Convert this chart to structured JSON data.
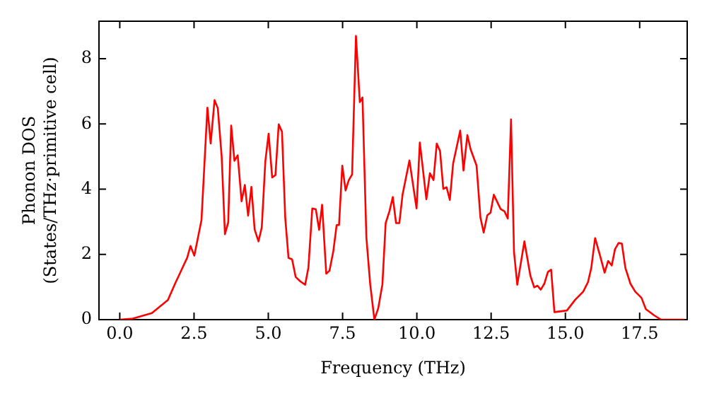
{
  "chart_data": {
    "type": "line",
    "xlabel": "Frequency (THz)",
    "ylabel": "Phonon DOS\n(States/THz·primitive cell)",
    "xlim": [
      -0.7,
      19.1
    ],
    "ylim": [
      0,
      9.15
    ],
    "xticks": [
      {
        "value": 0,
        "label": "0.0"
      },
      {
        "value": 2.5,
        "label": "2.5"
      },
      {
        "value": 5,
        "label": "5.0"
      },
      {
        "value": 7.5,
        "label": "7.5"
      },
      {
        "value": 10,
        "label": "10.0"
      },
      {
        "value": 12.5,
        "label": "12.5"
      },
      {
        "value": 15,
        "label": "15.0"
      },
      {
        "value": 17.5,
        "label": "17.5"
      }
    ],
    "yticks": [
      0,
      2,
      4,
      6,
      8
    ],
    "grid": false,
    "legend": false,
    "marker": "none",
    "line_style": "solid",
    "series": [
      {
        "color": "#ff0000",
        "x": [
          0,
          0.44,
          1.08,
          1.62,
          1.86,
          2.27,
          2.38,
          2.51,
          2.75,
          2.95,
          3.06,
          3.19,
          3.3,
          3.43,
          3.54,
          3.65,
          3.75,
          3.86,
          3.97,
          4.1,
          4.21,
          4.32,
          4.43,
          4.54,
          4.67,
          4.78,
          4.9,
          5.01,
          5.13,
          5.24,
          5.35,
          5.46,
          5.57,
          5.68,
          5.8,
          5.92,
          6.08,
          6.24,
          6.35,
          6.48,
          6.6,
          6.71,
          6.81,
          6.95,
          7.06,
          7.19,
          7.3,
          7.38,
          7.49,
          7.6,
          7.71,
          7.82,
          7.95,
          8.08,
          8.17,
          8.3,
          8.43,
          8.57,
          8.7,
          8.84,
          8.95,
          9.08,
          9.19,
          9.3,
          9.41,
          9.52,
          9.75,
          9.99,
          10.1,
          10.21,
          10.32,
          10.44,
          10.56,
          10.67,
          10.78,
          10.89,
          11,
          11.11,
          11.22,
          11.46,
          11.57,
          11.7,
          11.81,
          12.01,
          12.14,
          12.25,
          12.37,
          12.48,
          12.59,
          12.82,
          12.95,
          13.06,
          13.17,
          13.27,
          13.38,
          13.62,
          13.82,
          13.95,
          14.06,
          14.17,
          14.29,
          14.41,
          14.52,
          14.63,
          15.05,
          15.33,
          15.6,
          15.76,
          15.87,
          16,
          16.16,
          16.32,
          16.44,
          16.56,
          16.67,
          16.79,
          16.9,
          17.02,
          17.19,
          17.35,
          17.56,
          17.71,
          17.99,
          18.22,
          19
        ],
        "values": [
          0,
          0.03,
          0.2,
          0.6,
          1.1,
          1.9,
          2.26,
          1.96,
          3.05,
          6.5,
          5.4,
          6.73,
          6.48,
          5,
          2.62,
          2.98,
          5.95,
          4.87,
          5.04,
          3.63,
          4.13,
          3.19,
          4.07,
          2.76,
          2.4,
          2.83,
          4.86,
          5.7,
          4.36,
          4.43,
          5.99,
          5.76,
          3.12,
          1.89,
          1.85,
          1.31,
          1.17,
          1.07,
          1.6,
          3.41,
          3.38,
          2.75,
          3.52,
          1.41,
          1.5,
          2.11,
          2.9,
          2.9,
          4.72,
          3.96,
          4.28,
          4.45,
          8.7,
          6.67,
          6.81,
          2.53,
          1.08,
          0,
          0.35,
          1.08,
          2.96,
          3.33,
          3.76,
          2.96,
          2.96,
          3.84,
          4.88,
          3.41,
          5.43,
          4.56,
          3.69,
          4.49,
          4.28,
          5.4,
          5.17,
          4.01,
          4.06,
          3.67,
          4.78,
          5.8,
          4.57,
          5.66,
          5.22,
          4.72,
          3.13,
          2.67,
          3.2,
          3.28,
          3.83,
          3.39,
          3.32,
          3.1,
          6.14,
          2.08,
          1.07,
          2.4,
          1.35,
          0.99,
          1.04,
          0.92,
          1.1,
          1.46,
          1.53,
          0.23,
          0.28,
          0.61,
          0.86,
          1.15,
          1.58,
          2.5,
          1.98,
          1.44,
          1.8,
          1.66,
          2.16,
          2.35,
          2.33,
          1.58,
          1.1,
          0.86,
          0.67,
          0.32,
          0.13,
          0,
          0
        ]
      }
    ]
  }
}
